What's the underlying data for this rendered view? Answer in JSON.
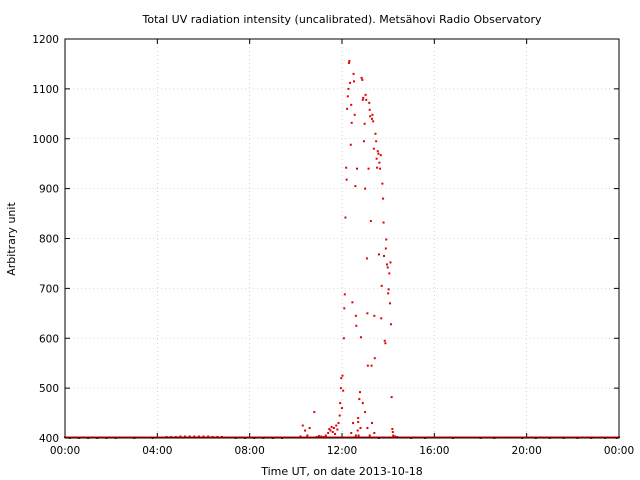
{
  "chart_data": {
    "type": "scatter",
    "title": "Total UV radiation intensity (uncalibrated). Metsähovi Radio Observatory",
    "xlabel": "Time UT, on date 2013-10-18",
    "ylabel": "Arbitrary unit",
    "xlim": [
      "00:00",
      "00:00"
    ],
    "ylim": [
      400,
      1200
    ],
    "x_ticks": [
      "00:00",
      "04:00",
      "08:00",
      "12:00",
      "16:00",
      "20:00",
      "00:00"
    ],
    "y_ticks": [
      "400",
      "500",
      "600",
      "700",
      "800",
      "900",
      "1000",
      "1100",
      "1200"
    ],
    "grid": true,
    "marker_color": "#e00000",
    "x_unit": "hours UT",
    "points": [
      [
        0.2,
        400
      ],
      [
        0.6,
        400
      ],
      [
        1.0,
        400
      ],
      [
        1.4,
        400
      ],
      [
        1.8,
        400
      ],
      [
        2.2,
        400
      ],
      [
        2.6,
        401
      ],
      [
        3.0,
        400
      ],
      [
        3.4,
        401
      ],
      [
        3.8,
        400
      ],
      [
        4.1,
        401
      ],
      [
        4.4,
        402
      ],
      [
        4.6,
        402
      ],
      [
        4.8,
        402
      ],
      [
        5.0,
        403
      ],
      [
        5.2,
        403
      ],
      [
        5.4,
        403
      ],
      [
        5.6,
        403
      ],
      [
        5.8,
        403
      ],
      [
        6.0,
        403
      ],
      [
        6.2,
        403
      ],
      [
        6.4,
        402
      ],
      [
        6.6,
        402
      ],
      [
        6.8,
        402
      ],
      [
        7.0,
        401
      ],
      [
        7.4,
        400
      ],
      [
        7.8,
        400
      ],
      [
        8.2,
        400
      ],
      [
        8.6,
        400
      ],
      [
        9.0,
        400
      ],
      [
        9.4,
        400
      ],
      [
        9.8,
        401
      ],
      [
        10.2,
        403
      ],
      [
        10.3,
        425
      ],
      [
        10.4,
        415
      ],
      [
        10.5,
        405
      ],
      [
        10.6,
        420
      ],
      [
        10.8,
        452
      ],
      [
        10.9,
        402
      ],
      [
        11.0,
        404
      ],
      [
        11.1,
        403
      ],
      [
        11.2,
        402
      ],
      [
        11.3,
        405
      ],
      [
        11.4,
        410
      ],
      [
        11.45,
        418
      ],
      [
        11.5,
        415
      ],
      [
        11.55,
        422
      ],
      [
        11.6,
        412
      ],
      [
        11.65,
        420
      ],
      [
        11.7,
        408
      ],
      [
        11.75,
        425
      ],
      [
        11.8,
        417
      ],
      [
        11.85,
        430
      ],
      [
        11.9,
        445
      ],
      [
        11.92,
        470
      ],
      [
        11.95,
        500
      ],
      [
        11.97,
        520
      ],
      [
        12.0,
        460
      ],
      [
        12.02,
        525
      ],
      [
        12.05,
        495
      ],
      [
        12.08,
        600
      ],
      [
        12.1,
        660
      ],
      [
        12.12,
        688
      ],
      [
        12.15,
        842
      ],
      [
        12.18,
        942
      ],
      [
        12.2,
        918
      ],
      [
        12.22,
        1060
      ],
      [
        12.25,
        1085
      ],
      [
        12.28,
        1100
      ],
      [
        12.3,
        1152
      ],
      [
        12.32,
        1156
      ],
      [
        12.35,
        1112
      ],
      [
        12.38,
        988
      ],
      [
        12.4,
        1068
      ],
      [
        12.42,
        1032
      ],
      [
        12.45,
        672
      ],
      [
        12.48,
        430
      ],
      [
        12.5,
        1130
      ],
      [
        12.52,
        1115
      ],
      [
        12.55,
        1048
      ],
      [
        12.58,
        905
      ],
      [
        12.6,
        645
      ],
      [
        12.62,
        625
      ],
      [
        12.65,
        940
      ],
      [
        12.68,
        415
      ],
      [
        12.7,
        432
      ],
      [
        12.72,
        405
      ],
      [
        12.75,
        478
      ],
      [
        12.78,
        492
      ],
      [
        12.8,
        420
      ],
      [
        12.82,
        602
      ],
      [
        12.85,
        1122
      ],
      [
        12.88,
        1118
      ],
      [
        12.9,
        1078
      ],
      [
        12.92,
        1082
      ],
      [
        12.95,
        995
      ],
      [
        12.98,
        1030
      ],
      [
        13.0,
        900
      ],
      [
        13.02,
        1088
      ],
      [
        13.05,
        1078
      ],
      [
        13.08,
        760
      ],
      [
        13.1,
        650
      ],
      [
        13.12,
        545
      ],
      [
        13.15,
        940
      ],
      [
        13.18,
        1072
      ],
      [
        13.2,
        1058
      ],
      [
        13.22,
        1045
      ],
      [
        13.25,
        835
      ],
      [
        13.28,
        545
      ],
      [
        13.3,
        1040
      ],
      [
        13.32,
        1048
      ],
      [
        13.35,
        1035
      ],
      [
        13.38,
        980
      ],
      [
        13.4,
        645
      ],
      [
        13.42,
        560
      ],
      [
        13.45,
        1010
      ],
      [
        13.48,
        995
      ],
      [
        13.5,
        960
      ],
      [
        13.52,
        942
      ],
      [
        13.55,
        975
      ],
      [
        13.58,
        970
      ],
      [
        13.6,
        768
      ],
      [
        13.62,
        952
      ],
      [
        13.65,
        940
      ],
      [
        13.68,
        967
      ],
      [
        13.7,
        640
      ],
      [
        13.72,
        705
      ],
      [
        13.75,
        910
      ],
      [
        13.78,
        880
      ],
      [
        13.8,
        832
      ],
      [
        13.82,
        765
      ],
      [
        13.85,
        595
      ],
      [
        13.88,
        590
      ],
      [
        13.9,
        780
      ],
      [
        13.92,
        798
      ],
      [
        13.95,
        748
      ],
      [
        13.98,
        742
      ],
      [
        14.0,
        690
      ],
      [
        14.02,
        698
      ],
      [
        14.05,
        730
      ],
      [
        14.08,
        670
      ],
      [
        14.1,
        752
      ],
      [
        14.12,
        628
      ],
      [
        14.15,
        482
      ],
      [
        14.18,
        418
      ],
      [
        14.2,
        412
      ],
      [
        14.22,
        405
      ],
      [
        14.3,
        403
      ],
      [
        14.4,
        402
      ],
      [
        14.6,
        401
      ],
      [
        13.0,
        452
      ],
      [
        13.1,
        420
      ],
      [
        13.2,
        405
      ],
      [
        13.3,
        430
      ],
      [
        12.6,
        405
      ],
      [
        12.7,
        440
      ],
      [
        12.9,
        470
      ],
      [
        13.4,
        410
      ],
      [
        13.6,
        400
      ],
      [
        12.4,
        410
      ],
      [
        15.0,
        400
      ],
      [
        15.6,
        400
      ],
      [
        16.2,
        401
      ],
      [
        16.8,
        400
      ],
      [
        17.4,
        401
      ],
      [
        18.0,
        400
      ],
      [
        18.6,
        400
      ],
      [
        19.2,
        401
      ],
      [
        19.8,
        400
      ],
      [
        20.4,
        400
      ],
      [
        21.0,
        400
      ],
      [
        21.6,
        400
      ],
      [
        22.2,
        400
      ],
      [
        22.8,
        400
      ],
      [
        23.4,
        400
      ],
      [
        23.9,
        400
      ]
    ]
  }
}
